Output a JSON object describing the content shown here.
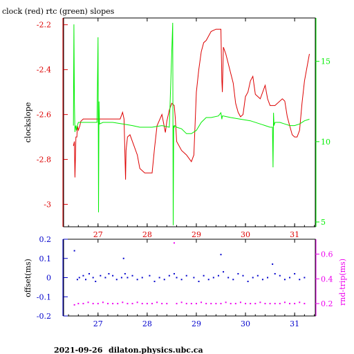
{
  "title": "clock (red) rtc (green) slopes",
  "footer": {
    "date": "2021-09-26",
    "host": "dilaton.physics.ubc.ca"
  },
  "colors": {
    "clock": "#dd0000",
    "rtc": "#00ee00",
    "offset": "#0000cc",
    "rtt": "#ee00ee",
    "axis": "#000000"
  },
  "chart_data": [
    {
      "type": "line",
      "title": "clock (red) rtc (green) slopes",
      "ylabel": "clockslope",
      "xlim": [
        26.3,
        31.42
      ],
      "ylim": [
        -3.1,
        -2.17
      ],
      "y2lim": [
        4.7,
        17.7
      ],
      "x_ticks": [
        "27",
        "28",
        "29",
        "30",
        "31"
      ],
      "y_ticks": [
        "-2.2",
        "-2.4",
        "-2.6",
        "-2.8",
        "-3"
      ],
      "y2_ticks": [
        "15",
        "10",
        "5"
      ],
      "series": [
        {
          "name": "clock",
          "axis": "left",
          "x": [
            26.5,
            26.52,
            26.53,
            26.55,
            26.57,
            26.58,
            26.6,
            26.63,
            26.65,
            26.7,
            26.75,
            27.0,
            27.2,
            27.3,
            27.45,
            27.5,
            27.53,
            27.56,
            27.57,
            27.6,
            27.65,
            27.8,
            27.85,
            27.95,
            28.1,
            28.15,
            28.2,
            28.3,
            28.37,
            28.4,
            28.45,
            28.5,
            28.55,
            28.57,
            28.6,
            28.7,
            28.8,
            28.9,
            28.95,
            29.0,
            29.05,
            29.1,
            29.15,
            29.2,
            29.3,
            29.4,
            29.5,
            29.52,
            29.53,
            29.55,
            29.6,
            29.75,
            29.8,
            29.85,
            29.9,
            29.95,
            30.0,
            30.05,
            30.1,
            30.15,
            30.2,
            30.3,
            30.4,
            30.45,
            30.5,
            30.6,
            30.75,
            30.8,
            30.85,
            30.9,
            30.95,
            31.0,
            31.05,
            31.1,
            31.15,
            31.2,
            31.3
          ],
          "y": [
            -2.74,
            -2.72,
            -2.88,
            -2.7,
            -2.7,
            -2.65,
            -2.67,
            -2.65,
            -2.63,
            -2.62,
            -2.62,
            -2.62,
            -2.62,
            -2.62,
            -2.62,
            -2.59,
            -2.62,
            -2.89,
            -2.76,
            -2.7,
            -2.69,
            -2.78,
            -2.84,
            -2.86,
            -2.86,
            -2.75,
            -2.65,
            -2.6,
            -2.68,
            -2.63,
            -2.58,
            -2.55,
            -2.56,
            -2.61,
            -2.72,
            -2.76,
            -2.78,
            -2.81,
            -2.78,
            -2.5,
            -2.4,
            -2.32,
            -2.28,
            -2.27,
            -2.23,
            -2.22,
            -2.22,
            -2.45,
            -2.5,
            -2.3,
            -2.33,
            -2.46,
            -2.55,
            -2.59,
            -2.61,
            -2.6,
            -2.52,
            -2.5,
            -2.45,
            -2.43,
            -2.51,
            -2.53,
            -2.47,
            -2.53,
            -2.56,
            -2.56,
            -2.53,
            -2.54,
            -2.61,
            -2.65,
            -2.69,
            -2.7,
            -2.7,
            -2.67,
            -2.55,
            -2.45,
            -2.33
          ]
        },
        {
          "name": "rtc",
          "axis": "right",
          "x": [
            26.5,
            26.51,
            26.52,
            26.53,
            26.54,
            26.55,
            26.56,
            26.58,
            26.6,
            26.65,
            26.8,
            26.98,
            27.0,
            27.01,
            27.02,
            27.03,
            27.1,
            27.3,
            27.5,
            27.7,
            27.85,
            27.95,
            28.1,
            28.3,
            28.45,
            28.52,
            28.53,
            28.54,
            28.55,
            28.56,
            28.6,
            28.7,
            28.8,
            28.9,
            29.0,
            29.1,
            29.2,
            29.3,
            29.45,
            29.5,
            29.52,
            29.53,
            29.55,
            29.7,
            29.9,
            30.1,
            30.3,
            30.5,
            30.55,
            30.56,
            30.57,
            30.58,
            30.6,
            30.7,
            30.8,
            30.9,
            31.0,
            31.1,
            31.2,
            31.3
          ],
          "y": [
            11.0,
            17.3,
            12.5,
            10.6,
            10.9,
            11.0,
            10.7,
            11.0,
            11.2,
            11.2,
            11.2,
            11.2,
            16.5,
            5.6,
            12.5,
            11.1,
            11.2,
            11.2,
            11.1,
            11.0,
            10.9,
            10.9,
            10.9,
            11.0,
            10.9,
            17.4,
            4.8,
            11.0,
            10.9,
            11.0,
            10.9,
            10.8,
            10.5,
            10.5,
            10.7,
            11.2,
            11.5,
            11.5,
            11.6,
            11.8,
            11.4,
            11.6,
            11.6,
            11.5,
            11.4,
            11.3,
            11.1,
            10.9,
            10.9,
            8.4,
            11.8,
            11.0,
            11.2,
            11.2,
            11.1,
            11.0,
            11.0,
            11.1,
            11.3,
            11.4
          ]
        }
      ]
    },
    {
      "type": "scatter",
      "ylabel": "offset(ms)",
      "y2label": "rnd-trip(ms)",
      "xlim": [
        26.3,
        31.42
      ],
      "ylim": [
        -0.2,
        0.2
      ],
      "y2lim": [
        0.1,
        0.72
      ],
      "x_ticks": [
        "27",
        "28",
        "29",
        "30",
        "31"
      ],
      "y_ticks": [
        "0.2",
        "0.1",
        "0",
        "-0.1",
        "-0.2"
      ],
      "y2_ticks": [
        "0.6",
        "0.4",
        "0.2"
      ],
      "series": [
        {
          "name": "offset(ms)",
          "axis": "left",
          "x": [
            26.52,
            26.58,
            26.62,
            26.7,
            26.75,
            26.82,
            26.9,
            26.95,
            27.05,
            27.15,
            27.22,
            27.3,
            27.38,
            27.48,
            27.52,
            27.55,
            27.6,
            27.7,
            27.8,
            27.9,
            28.05,
            28.15,
            28.25,
            28.35,
            28.45,
            28.55,
            28.6,
            28.7,
            28.8,
            28.95,
            29.05,
            29.15,
            29.25,
            29.35,
            29.45,
            29.5,
            29.55,
            29.65,
            29.75,
            29.85,
            29.95,
            30.05,
            30.15,
            30.25,
            30.35,
            30.45,
            30.55,
            30.6,
            30.7,
            30.8,
            30.9,
            31.0,
            31.1,
            31.2
          ],
          "y": [
            0.14,
            -0.01,
            0.0,
            0.01,
            -0.01,
            0.02,
            0.0,
            -0.02,
            0.01,
            0.0,
            0.02,
            0.01,
            -0.01,
            0.0,
            0.1,
            0.02,
            0.0,
            0.01,
            -0.01,
            0.0,
            0.01,
            -0.02,
            0.0,
            -0.01,
            0.01,
            0.02,
            0.0,
            -0.01,
            0.01,
            0.0,
            -0.02,
            0.01,
            -0.01,
            0.0,
            0.01,
            0.12,
            0.03,
            0.0,
            -0.01,
            0.02,
            0.01,
            -0.02,
            0.0,
            0.01,
            -0.01,
            0.0,
            0.07,
            0.02,
            0.01,
            -0.01,
            0.0,
            0.02,
            -0.01,
            0.0
          ]
        },
        {
          "name": "rnd-trip(ms)",
          "axis": "right",
          "x": [
            26.52,
            26.6,
            26.7,
            26.8,
            26.9,
            27.0,
            27.1,
            27.2,
            27.3,
            27.4,
            27.5,
            27.6,
            27.7,
            27.8,
            27.9,
            28.0,
            28.1,
            28.2,
            28.3,
            28.4,
            28.55,
            28.6,
            28.7,
            28.8,
            28.9,
            29.0,
            29.1,
            29.2,
            29.3,
            29.4,
            29.5,
            29.6,
            29.7,
            29.8,
            29.9,
            30.0,
            30.1,
            30.2,
            30.3,
            30.4,
            30.5,
            30.6,
            30.7,
            30.8,
            30.9,
            31.0,
            31.1,
            31.2
          ],
          "y": [
            0.19,
            0.2,
            0.2,
            0.21,
            0.2,
            0.2,
            0.21,
            0.2,
            0.2,
            0.2,
            0.21,
            0.2,
            0.2,
            0.21,
            0.2,
            0.2,
            0.2,
            0.21,
            0.2,
            0.2,
            0.69,
            0.2,
            0.21,
            0.2,
            0.2,
            0.2,
            0.21,
            0.2,
            0.2,
            0.2,
            0.2,
            0.21,
            0.2,
            0.2,
            0.21,
            0.2,
            0.2,
            0.2,
            0.21,
            0.2,
            0.2,
            0.2,
            0.2,
            0.21,
            0.2,
            0.2,
            0.21,
            0.2
          ]
        }
      ]
    }
  ]
}
